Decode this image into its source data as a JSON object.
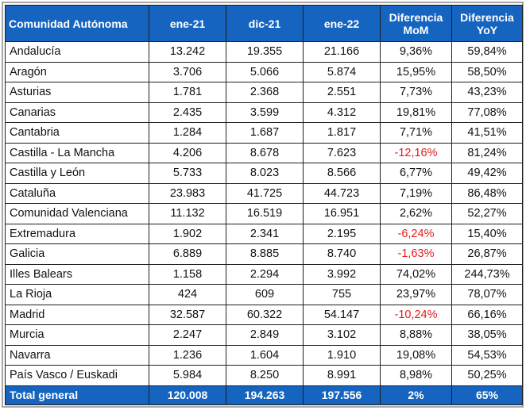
{
  "table": {
    "headers": [
      "Comunidad Autónoma",
      "ene-21",
      "dic-21",
      "ene-22",
      "Diferencia MoM",
      "Diferencia YoY"
    ],
    "rows": [
      [
        "Andalucía",
        "13.242",
        "19.355",
        "21.166",
        "9,36%",
        "59,84%"
      ],
      [
        "Aragón",
        "3.706",
        "5.066",
        "5.874",
        "15,95%",
        "58,50%"
      ],
      [
        "Asturias",
        "1.781",
        "2.368",
        "2.551",
        "7,73%",
        "43,23%"
      ],
      [
        "Canarias",
        "2.435",
        "3.599",
        "4.312",
        "19,81%",
        "77,08%"
      ],
      [
        "Cantabria",
        "1.284",
        "1.687",
        "1.817",
        "7,71%",
        "41,51%"
      ],
      [
        "Castilla - La Mancha",
        "4.206",
        "8.678",
        "7.623",
        "-12,16%",
        "81,24%"
      ],
      [
        "Castilla y León",
        "5.733",
        "8.023",
        "8.566",
        "6,77%",
        "49,42%"
      ],
      [
        "Cataluña",
        "23.983",
        "41.725",
        "44.723",
        "7,19%",
        "86,48%"
      ],
      [
        "Comunidad Valenciana",
        "11.132",
        "16.519",
        "16.951",
        "2,62%",
        "52,27%"
      ],
      [
        "Extremadura",
        "1.902",
        "2.341",
        "2.195",
        "-6,24%",
        "15,40%"
      ],
      [
        "Galicia",
        "6.889",
        "8.885",
        "8.740",
        "-1,63%",
        "26,87%"
      ],
      [
        "Illes Balears",
        "1.158",
        "2.294",
        "3.992",
        "74,02%",
        "244,73%"
      ],
      [
        "La Rioja",
        "424",
        "609",
        "755",
        "23,97%",
        "78,07%"
      ],
      [
        "Madrid",
        "32.587",
        "60.322",
        "54.147",
        "-10,24%",
        "66,16%"
      ],
      [
        "Murcia",
        "2.247",
        "2.849",
        "3.102",
        "8,88%",
        "38,05%"
      ],
      [
        "Navarra",
        "1.236",
        "1.604",
        "1.910",
        "19,08%",
        "54,53%"
      ],
      [
        "País Vasco / Euskadi",
        "5.984",
        "8.250",
        "8.991",
        "8,98%",
        "50,25%"
      ]
    ],
    "total": [
      "Total general",
      "120.008",
      "194.263",
      "197.556",
      "2%",
      "65%"
    ]
  },
  "colors": {
    "header_bg": "#1565c0",
    "header_text": "#ffffff",
    "negative": "#e31b1b"
  }
}
